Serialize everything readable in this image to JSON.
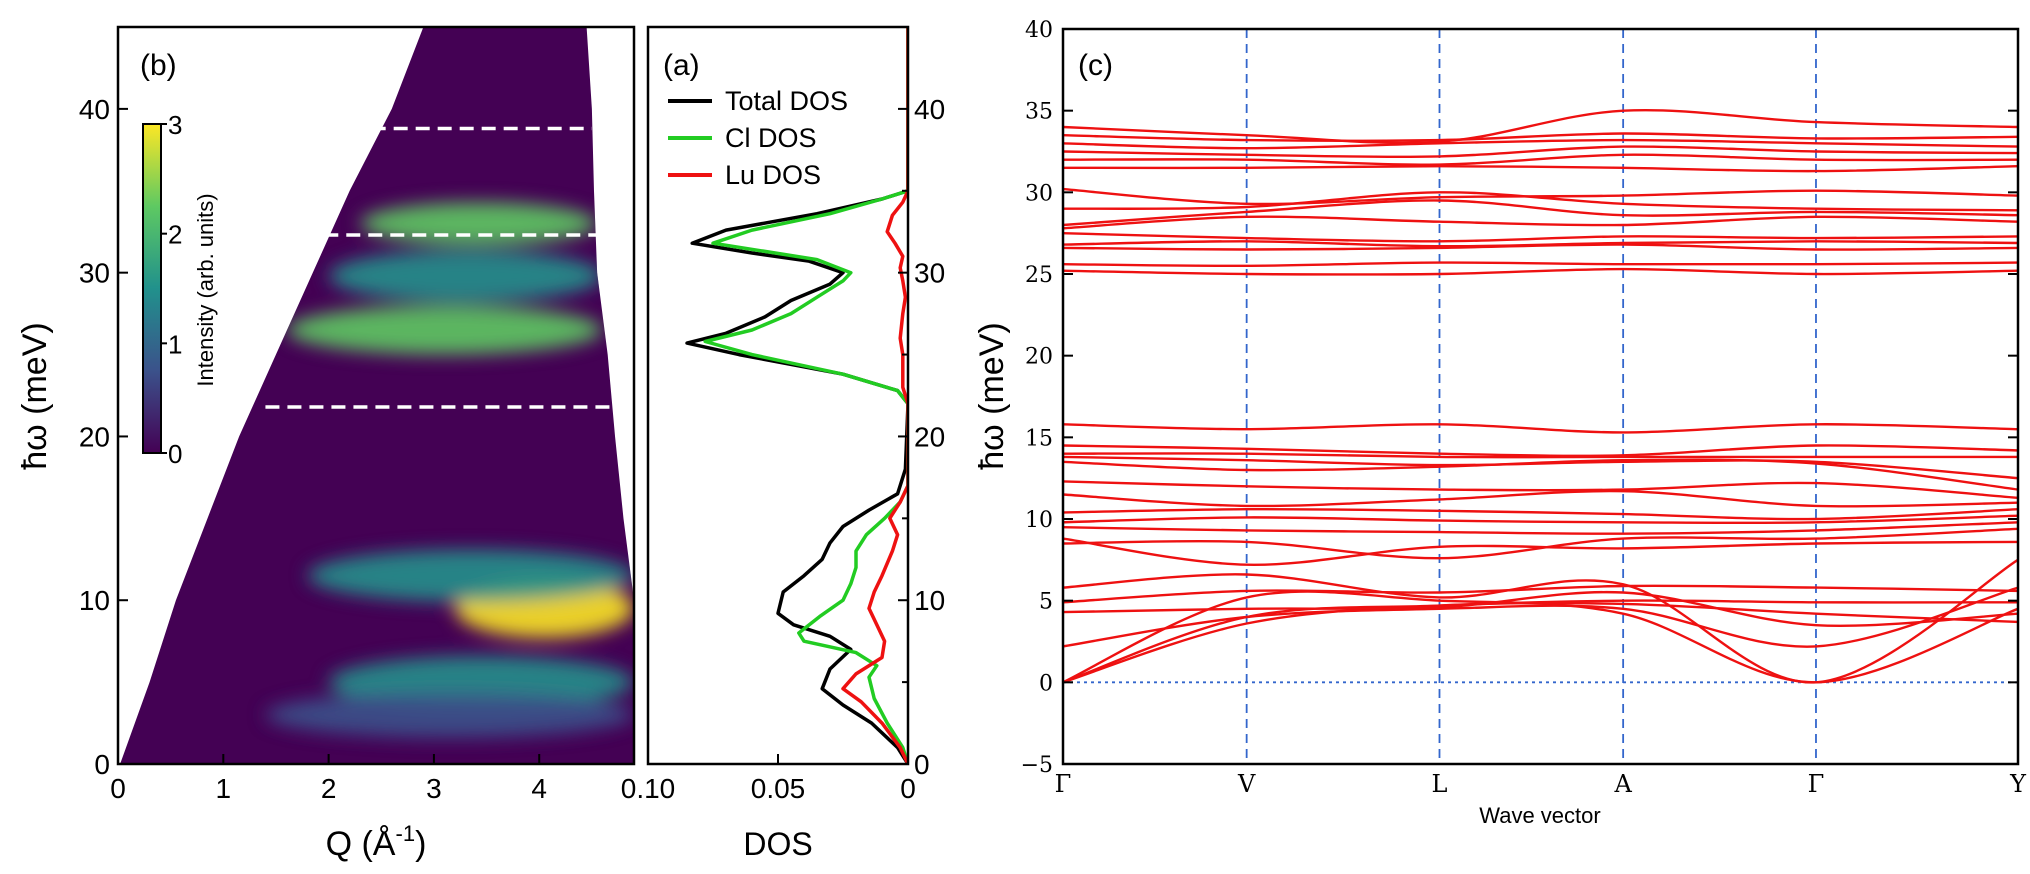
{
  "figure": {
    "panels": [
      "(b)",
      "(a)",
      "(c)"
    ]
  },
  "chart_data": [
    {
      "id": "b",
      "type": "heatmap",
      "panel_label": "(b)",
      "xlabel": "Q (Å",
      "xlabel_sup": "-1",
      "xlabel_close": ")",
      "ylabel": "ħω (meV)",
      "xlim": [
        0,
        4.9
      ],
      "ylim": [
        0,
        45
      ],
      "xticks": [
        0,
        1,
        2,
        3,
        4
      ],
      "yticks": [
        0,
        10,
        20,
        30,
        40
      ],
      "colorbar": {
        "label": "Intensity (arb. units)",
        "range": [
          0,
          3
        ],
        "ticks": [
          0,
          1,
          2,
          3
        ],
        "colormap": [
          "#440154",
          "#3b528b",
          "#21918c",
          "#5ec962",
          "#fde725"
        ]
      },
      "dashed_lines": [
        {
          "y": 21.8,
          "x": [
            1.4,
            4.75
          ]
        },
        {
          "y": 32.3,
          "x": [
            1.75,
            4.55
          ]
        },
        {
          "y": 38.8,
          "x": [
            2.2,
            4.5
          ]
        }
      ],
      "coverage_edges": {
        "energy": [
          0,
          5,
          10,
          15,
          20,
          25,
          30,
          35,
          40,
          45
        ],
        "q_min": [
          0.02,
          0.3,
          0.55,
          0.85,
          1.15,
          1.5,
          1.85,
          2.2,
          2.6,
          2.9
        ],
        "q_max": [
          4.9,
          4.9,
          4.9,
          4.8,
          4.72,
          4.65,
          4.55,
          4.52,
          4.5,
          4.45
        ]
      },
      "features": [
        {
          "E": 26.5,
          "Q": [
            1.6,
            4.6
          ],
          "dE": 1.5,
          "I": 1.9
        },
        {
          "E": 29.8,
          "Q": [
            2.0,
            4.6
          ],
          "dE": 1.6,
          "I": 1.5
        },
        {
          "E": 33.0,
          "Q": [
            2.3,
            4.55
          ],
          "dE": 1.3,
          "I": 2.0
        },
        {
          "E": 9.5,
          "Q": [
            3.2,
            4.9
          ],
          "dE": 1.8,
          "I": 3.2
        },
        {
          "E": 11.5,
          "Q": [
            1.8,
            4.9
          ],
          "dE": 1.6,
          "I": 1.2
        },
        {
          "E": 5.0,
          "Q": [
            2.0,
            4.9
          ],
          "dE": 1.6,
          "I": 1.6
        },
        {
          "E": 3.0,
          "Q": [
            1.4,
            4.9
          ],
          "dE": 1.4,
          "I": 1.0
        }
      ]
    },
    {
      "id": "a",
      "type": "line",
      "panel_label": "(a)",
      "xlabel": "DOS",
      "xlim": [
        0.1,
        0
      ],
      "ylim": [
        0,
        45
      ],
      "xticks": [
        0.1,
        0.05,
        0
      ],
      "xtick_labels": [
        "0.10",
        "0.05",
        "0"
      ],
      "yticks": [
        0,
        10,
        20,
        30,
        40
      ],
      "legend_position": "top",
      "series": [
        {
          "name": "Total DOS",
          "color": "#000000",
          "points": [
            [
              0.0,
              0
            ],
            [
              0.004,
              1
            ],
            [
              0.014,
              2.5
            ],
            [
              0.025,
              3.6
            ],
            [
              0.033,
              4.6
            ],
            [
              0.03,
              5.8
            ],
            [
              0.022,
              7
            ],
            [
              0.03,
              7.8
            ],
            [
              0.044,
              8.5
            ],
            [
              0.05,
              9.2
            ],
            [
              0.048,
              10.5
            ],
            [
              0.04,
              11.5
            ],
            [
              0.033,
              12.5
            ],
            [
              0.03,
              13.5
            ],
            [
              0.025,
              14.5
            ],
            [
              0.015,
              15.5
            ],
            [
              0.004,
              16.5
            ],
            [
              0.001,
              18
            ],
            [
              0.0,
              22
            ],
            [
              0.004,
              22.8
            ],
            [
              0.025,
              23.8
            ],
            [
              0.065,
              25
            ],
            [
              0.085,
              25.7
            ],
            [
              0.07,
              26.3
            ],
            [
              0.055,
              27.3
            ],
            [
              0.045,
              28.3
            ],
            [
              0.03,
              29.3
            ],
            [
              0.025,
              30
            ],
            [
              0.038,
              30.7
            ],
            [
              0.06,
              31.2
            ],
            [
              0.083,
              31.8
            ],
            [
              0.07,
              32.6
            ],
            [
              0.035,
              33.6
            ],
            [
              0.01,
              34.5
            ],
            [
              0.0,
              35
            ],
            [
              0.0,
              45
            ]
          ]
        },
        {
          "name": "Cl DOS",
          "color": "#22cc22",
          "points": [
            [
              0.0,
              0
            ],
            [
              0.002,
              1
            ],
            [
              0.008,
              2.5
            ],
            [
              0.013,
              4
            ],
            [
              0.015,
              5.3
            ],
            [
              0.012,
              6
            ],
            [
              0.02,
              6.8
            ],
            [
              0.04,
              7.5
            ],
            [
              0.042,
              8
            ],
            [
              0.034,
              9
            ],
            [
              0.025,
              10
            ],
            [
              0.022,
              11
            ],
            [
              0.02,
              12
            ],
            [
              0.02,
              13
            ],
            [
              0.016,
              14
            ],
            [
              0.009,
              15
            ],
            [
              0.003,
              16
            ],
            [
              0.0,
              17
            ],
            [
              0.0,
              22
            ],
            [
              0.004,
              22.8
            ],
            [
              0.025,
              23.8
            ],
            [
              0.06,
              25
            ],
            [
              0.078,
              25.8
            ],
            [
              0.06,
              26.5
            ],
            [
              0.045,
              27.5
            ],
            [
              0.035,
              28.5
            ],
            [
              0.025,
              29.5
            ],
            [
              0.022,
              30
            ],
            [
              0.035,
              30.8
            ],
            [
              0.055,
              31.3
            ],
            [
              0.075,
              31.8
            ],
            [
              0.06,
              32.6
            ],
            [
              0.03,
              33.6
            ],
            [
              0.01,
              34.5
            ],
            [
              0.0,
              35
            ],
            [
              0.0,
              45
            ]
          ]
        },
        {
          "name": "Lu DOS",
          "color": "#ee1111",
          "points": [
            [
              0.0,
              0
            ],
            [
              0.003,
              1
            ],
            [
              0.01,
              2.5
            ],
            [
              0.018,
              3.8
            ],
            [
              0.025,
              4.6
            ],
            [
              0.02,
              5.5
            ],
            [
              0.01,
              6.5
            ],
            [
              0.009,
              7.5
            ],
            [
              0.012,
              8.5
            ],
            [
              0.015,
              9.5
            ],
            [
              0.013,
              10.5
            ],
            [
              0.01,
              11.5
            ],
            [
              0.006,
              13
            ],
            [
              0.004,
              14
            ],
            [
              0.007,
              15
            ],
            [
              0.003,
              16
            ],
            [
              0.0,
              17
            ],
            [
              0.0,
              22
            ],
            [
              0.002,
              23
            ],
            [
              0.002,
              25
            ],
            [
              0.003,
              26
            ],
            [
              0.002,
              27.5
            ],
            [
              0.001,
              28.5
            ],
            [
              0.002,
              29.5
            ],
            [
              0.003,
              30.3
            ],
            [
              0.002,
              31
            ],
            [
              0.005,
              31.8
            ],
            [
              0.008,
              32.5
            ],
            [
              0.006,
              33.5
            ],
            [
              0.002,
              34.3
            ],
            [
              0.0,
              35
            ],
            [
              0.0,
              45
            ]
          ]
        }
      ]
    },
    {
      "id": "c",
      "type": "line",
      "panel_label": "(c)",
      "xlabel": "Wave vector",
      "ylabel": "ħω (meV)",
      "ylim": [
        -5,
        40
      ],
      "yticks": [
        -5,
        0,
        5,
        10,
        15,
        20,
        25,
        30,
        35,
        40
      ],
      "kpoints": [
        {
          "label": "Γ",
          "x": 0
        },
        {
          "label": "V",
          "x": 1
        },
        {
          "label": "L",
          "x": 2.05
        },
        {
          "label": "A",
          "x": 3.05
        },
        {
          "label": "Γ",
          "x": 4.1
        },
        {
          "label": "Y",
          "x": 5.2
        }
      ],
      "xlim": [
        0,
        5.2
      ],
      "band_color": "#ee1111",
      "bands": [
        [
          0,
          4.0,
          4.7,
          5.0,
          4.9,
          4.9
        ],
        [
          0,
          3.6,
          4.7,
          4.8,
          4.2,
          3.7
        ],
        [
          0,
          5.2,
          5.0,
          4.2,
          0,
          4.5
        ],
        [
          2.2,
          4.0,
          4.5,
          4.5,
          2.2,
          5.8
        ],
        [
          4.3,
          4.5,
          4.6,
          5.5,
          3.5,
          4.2
        ],
        [
          4.9,
          5.6,
          5.5,
          5.9,
          5.8,
          5.6
        ],
        [
          5.8,
          6.6,
          5.2,
          6.0,
          0,
          7.5
        ],
        [
          8.8,
          7.2,
          8.3,
          8.2,
          8.5,
          8.6
        ],
        [
          8.5,
          8.6,
          7.6,
          8.8,
          8.8,
          9.4
        ],
        [
          9.5,
          9.3,
          9.2,
          9.1,
          9.3,
          9.8
        ],
        [
          9.8,
          10.1,
          9.9,
          9.8,
          9.8,
          10.2
        ],
        [
          10.4,
          10.6,
          10.5,
          10.3,
          10.0,
          10.6
        ],
        [
          11.5,
          10.8,
          11.2,
          11.7,
          10.8,
          11.0
        ],
        [
          12.3,
          12.0,
          11.8,
          11.8,
          12.2,
          11.3
        ],
        [
          13.5,
          13.0,
          13.2,
          13.6,
          13.4,
          11.8
        ],
        [
          13.8,
          13.6,
          13.3,
          13.5,
          13.5,
          12.5
        ],
        [
          14.0,
          14.0,
          13.8,
          13.8,
          13.8,
          13.8
        ],
        [
          14.5,
          14.3,
          14.0,
          13.9,
          14.5,
          14.2
        ],
        [
          15.8,
          15.5,
          15.8,
          15.3,
          15.8,
          15.5
        ],
        [
          25.2,
          25.0,
          25.0,
          25.3,
          25.0,
          25.2
        ],
        [
          25.6,
          25.5,
          25.7,
          25.6,
          25.6,
          25.7
        ],
        [
          26.6,
          26.5,
          26.6,
          26.8,
          26.5,
          26.6
        ],
        [
          26.8,
          27.0,
          26.7,
          26.9,
          27.0,
          26.9
        ],
        [
          27.5,
          27.2,
          27.0,
          27.3,
          27.2,
          27.3
        ],
        [
          27.8,
          28.5,
          28.2,
          28.0,
          28.5,
          28.2
        ],
        [
          28.0,
          28.8,
          29.5,
          28.6,
          28.8,
          28.6
        ],
        [
          29.0,
          29.1,
          30.0,
          29.3,
          29.0,
          28.9
        ],
        [
          30.2,
          29.3,
          29.7,
          29.8,
          30.1,
          29.8
        ],
        [
          31.5,
          31.5,
          31.6,
          31.5,
          31.3,
          31.6
        ],
        [
          32.0,
          32.0,
          31.7,
          32.3,
          32.0,
          32.0
        ],
        [
          32.5,
          32.3,
          32.2,
          32.8,
          32.5,
          32.4
        ],
        [
          33.0,
          32.7,
          33.0,
          33.2,
          33.0,
          32.8
        ],
        [
          33.5,
          33.2,
          33.2,
          33.6,
          33.3,
          33.4
        ],
        [
          34.0,
          33.5,
          33.1,
          35.0,
          34.3,
          34.0
        ]
      ]
    }
  ]
}
